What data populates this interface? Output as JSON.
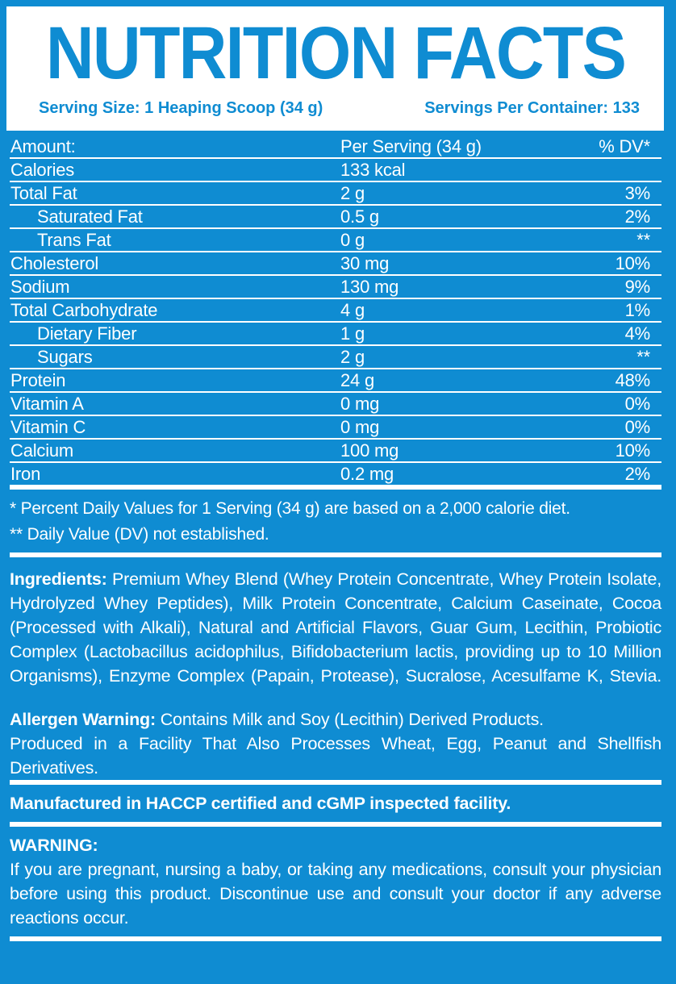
{
  "colors": {
    "accent_blue": "#0f8cd2",
    "text_white": "#ffffff"
  },
  "header": {
    "title": "NUTRITION FACTS",
    "serving_size": "Serving Size: 1 Heaping Scoop (34 g)",
    "servings_per_container": "Servings Per Container: 133"
  },
  "table": {
    "header": {
      "name": "Amount:",
      "amount": "Per Serving (34 g)",
      "dv": "% DV*"
    },
    "rows": [
      {
        "name": "Calories",
        "amount": "133 kcal",
        "dv": ""
      },
      {
        "name": "Total Fat",
        "amount": "2 g",
        "dv": "3%"
      },
      {
        "name": "Saturated Fat",
        "amount": "0.5 g",
        "dv": "2%"
      },
      {
        "name": "Trans Fat",
        "amount": "0 g",
        "dv": "**"
      },
      {
        "name": "Cholesterol",
        "amount": "30 mg",
        "dv": "10%"
      },
      {
        "name": "Sodium",
        "amount": "130 mg",
        "dv": "9%"
      },
      {
        "name": "Total Carbohydrate",
        "amount": "4 g",
        "dv": "1%"
      },
      {
        "name": "Dietary Fiber",
        "amount": "1 g",
        "dv": "4%"
      },
      {
        "name": "Sugars",
        "amount": "2 g",
        "dv": "**"
      },
      {
        "name": "Protein",
        "amount": "24 g",
        "dv": "48%"
      },
      {
        "name": "Vitamin A",
        "amount": "0 mg",
        "dv": "0%"
      },
      {
        "name": "Vitamin C",
        "amount": "0 mg",
        "dv": "0%"
      },
      {
        "name": "Calcium",
        "amount": "100 mg",
        "dv": "10%"
      },
      {
        "name": "Iron",
        "amount": "0.2 mg",
        "dv": "2%"
      }
    ]
  },
  "footnotes": [
    "* Percent Daily Values for 1 Serving (34 g) are based on a 2,000 calorie diet.",
    "** Daily Value (DV) not established."
  ],
  "ingredients": {
    "label": "Ingredients:",
    "text": "Premium Whey Blend (Whey Protein Concentrate, Whey Protein Isolate, Hydrolyzed Whey Peptides), Milk Protein Concentrate, Calcium Caseinate, Cocoa (Processed with Alkali), Natural and Artificial Flavors, Guar Gum, Lecithin, Probiotic Complex (Lactobacillus acidophilus, Bifidobacterium lactis, providing up to 10 Million Organisms), Enzyme Complex (Papain, Protease), Sucralose, Acesulfame K, Stevia."
  },
  "allergen": {
    "label": "Allergen Warning:",
    "line1": "Contains Milk and Soy (Lecithin) Derived Products.",
    "line2": "Produced in a Facility That Also Processes Wheat, Egg, Peanut and Shellfish Derivatives."
  },
  "manufactured": "Manufactured in HACCP certified and cGMP inspected facility.",
  "warning": {
    "label": "WARNING:",
    "text": "If you are pregnant, nursing a baby, or taking any medications, consult your physician before using this product. Discontinue use and consult your doctor if any adverse reactions occur."
  }
}
